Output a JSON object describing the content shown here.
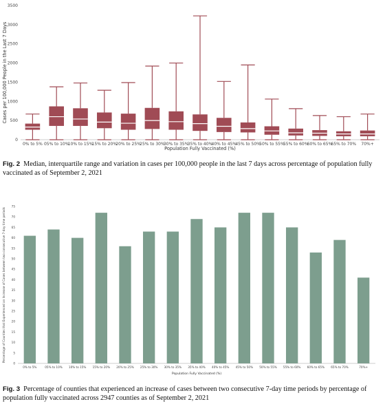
{
  "chart_data": [
    {
      "type": "box",
      "categories": [
        "0% to 5%",
        "05% to 10%",
        "10% to 15%",
        "15% to 20%",
        "20% to 25%",
        "25% to 30%",
        "30% to 35%",
        "35% to 40%",
        "40% to 45%",
        "45% to 50%",
        "50% to 55%",
        "55% to 60%",
        "60% to 65%",
        "65% to 70%",
        "70%+"
      ],
      "boxes": [
        {
          "min": 0,
          "q1": 260,
          "median": 330,
          "q3": 420,
          "max": 670
        },
        {
          "min": 0,
          "q1": 360,
          "median": 600,
          "q3": 870,
          "max": 1380
        },
        {
          "min": 0,
          "q1": 360,
          "median": 540,
          "q3": 820,
          "max": 1480
        },
        {
          "min": 0,
          "q1": 300,
          "median": 460,
          "q3": 710,
          "max": 1290
        },
        {
          "min": 0,
          "q1": 260,
          "median": 430,
          "q3": 680,
          "max": 1490
        },
        {
          "min": 0,
          "q1": 280,
          "median": 500,
          "q3": 830,
          "max": 1920
        },
        {
          "min": 0,
          "q1": 260,
          "median": 470,
          "q3": 740,
          "max": 2000
        },
        {
          "min": 0,
          "q1": 230,
          "median": 420,
          "q3": 660,
          "max": 3230
        },
        {
          "min": 0,
          "q1": 200,
          "median": 350,
          "q3": 570,
          "max": 1520
        },
        {
          "min": 0,
          "q1": 190,
          "median": 290,
          "q3": 450,
          "max": 1950
        },
        {
          "min": 0,
          "q1": 130,
          "median": 230,
          "q3": 350,
          "max": 1060
        },
        {
          "min": 0,
          "q1": 110,
          "median": 180,
          "q3": 290,
          "max": 810
        },
        {
          "min": 0,
          "q1": 100,
          "median": 170,
          "q3": 250,
          "max": 630
        },
        {
          "min": 0,
          "q1": 90,
          "median": 150,
          "q3": 220,
          "max": 600
        },
        {
          "min": 0,
          "q1": 90,
          "median": 150,
          "q3": 240,
          "max": 670
        }
      ],
      "y_ticks": [
        0,
        500,
        1000,
        1500,
        2000,
        2500,
        3000,
        3500
      ],
      "ylim": [
        0,
        3500
      ],
      "xlabel": "Population Fully Vaccinated (%)",
      "ylabel": "Cases per 100,000 People in the Last 7 Days",
      "color": "#a04b55",
      "grid": false
    },
    {
      "type": "bar",
      "categories": [
        "0% to 5%",
        "05% to 10%",
        "10% to 15%",
        "15% to 20%",
        "20% to 25%",
        "25% to 30%",
        "30% to 35%",
        "35% to 40%",
        "40% to 45%",
        "45% to 50%",
        "50% to 55%",
        "55% to 60%",
        "60% to 65%",
        "65% to 70%",
        "70%+"
      ],
      "values": [
        61,
        64,
        60,
        72,
        56,
        63,
        63,
        69,
        65,
        72,
        72,
        65,
        53,
        59,
        41
      ],
      "y_ticks": [
        0,
        5,
        10,
        15,
        20,
        25,
        30,
        35,
        40,
        45,
        50,
        55,
        60,
        65,
        70,
        75
      ],
      "ylim": [
        0,
        75
      ],
      "xlabel": "Population Fully Vaccinated (%)",
      "ylabel": "Percentage of Counties that Experienced an Increase of Cases between two consecutive 7-day time periods",
      "color": "#7d9e8e",
      "grid": false
    }
  ],
  "captions": {
    "fig2_label": "Fig. 2",
    "fig2_text": "Median, interquartile range and variation in cases per 100,000 people in the last 7 days across percentage of population fully vaccinated as of September 2, 2021",
    "fig3_label": "Fig. 3",
    "fig3_text": "Percentage of counties that experienced an increase of cases between two consecutive 7-day time periods by percentage of population fully vaccinated across 2947 counties as of September 2, 2021"
  }
}
